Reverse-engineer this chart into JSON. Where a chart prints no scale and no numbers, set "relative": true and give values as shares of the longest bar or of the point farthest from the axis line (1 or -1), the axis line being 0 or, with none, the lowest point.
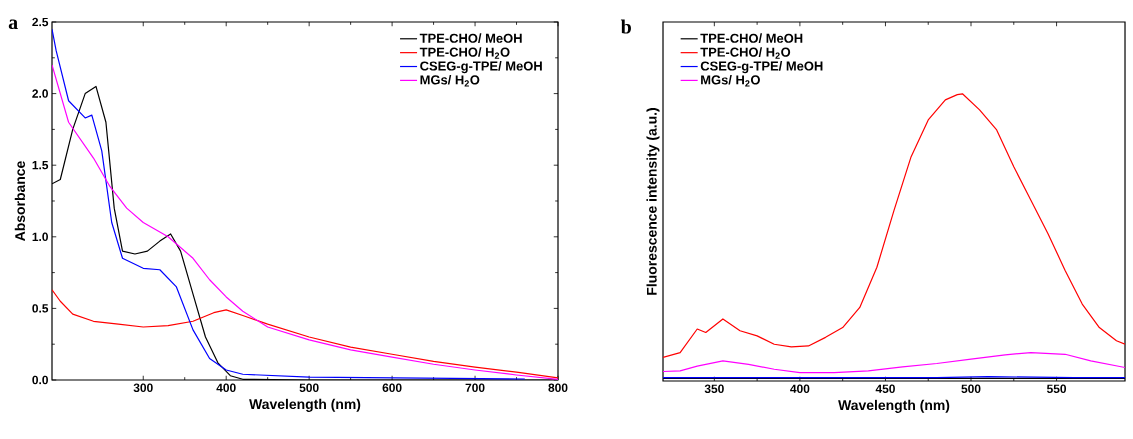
{
  "chart_data": [
    {
      "type": "line",
      "title": "a",
      "xlabel": "Wavelength (nm)",
      "ylabel": "Absorbance",
      "xlim": [
        190,
        800
      ],
      "ylim": [
        0,
        2.5
      ],
      "xticks": [
        300,
        400,
        500,
        600,
        700,
        800
      ],
      "yticks": [
        {
          "value": 0,
          "label": "0.0"
        },
        {
          "value": 0.5,
          "label": "0.5"
        },
        {
          "value": 1,
          "label": "1.0"
        },
        {
          "value": 1.5,
          "label": "1.5"
        },
        {
          "value": 2,
          "label": "2.0"
        },
        {
          "value": 2.5,
          "label": "2.5"
        }
      ],
      "legend": "top right",
      "grid": false,
      "marker": "none",
      "line_style": "solid",
      "series": [
        {
          "name": "TPE-CHO/ MeOH",
          "color": "#000000",
          "x": [
            190,
            200,
            215,
            230,
            243,
            255,
            265,
            275,
            290,
            305,
            320,
            333,
            345,
            360,
            375,
            390,
            405,
            420,
            500,
            800
          ],
          "values": [
            1.37,
            1.4,
            1.75,
            2.0,
            2.05,
            1.8,
            1.2,
            0.9,
            0.88,
            0.9,
            0.97,
            1.02,
            0.9,
            0.6,
            0.3,
            0.12,
            0.03,
            0.005,
            0,
            0
          ]
        },
        {
          "name": "TPE-CHO/ H$_{2}$O",
          "color": "#ff0000",
          "x": [
            190,
            200,
            215,
            240,
            270,
            300,
            330,
            360,
            385,
            400,
            420,
            450,
            500,
            550,
            600,
            650,
            700,
            750,
            800
          ],
          "values": [
            0.63,
            0.55,
            0.46,
            0.41,
            0.39,
            0.37,
            0.38,
            0.41,
            0.47,
            0.49,
            0.45,
            0.39,
            0.3,
            0.23,
            0.18,
            0.13,
            0.09,
            0.055,
            0.015
          ]
        },
        {
          "name": "CSEG-g-TPE/ MeOH",
          "color": "#0000ff",
          "x": [
            190,
            195,
            210,
            230,
            238,
            250,
            262,
            275,
            300,
            320,
            340,
            360,
            380,
            400,
            420,
            500,
            760
          ],
          "values": [
            2.45,
            2.3,
            1.95,
            1.83,
            1.85,
            1.6,
            1.1,
            0.85,
            0.78,
            0.77,
            0.65,
            0.35,
            0.15,
            0.07,
            0.04,
            0.02,
            0.007
          ]
        },
        {
          "name": "MGs/ H$_{2}$O",
          "color": "#ff00ff",
          "x": [
            190,
            210,
            240,
            260,
            280,
            300,
            330,
            360,
            380,
            400,
            420,
            450,
            500,
            550,
            600,
            650,
            700,
            750,
            800
          ],
          "values": [
            2.2,
            1.8,
            1.55,
            1.35,
            1.2,
            1.1,
            1.0,
            0.85,
            0.7,
            0.58,
            0.48,
            0.37,
            0.28,
            0.21,
            0.16,
            0.11,
            0.07,
            0.035,
            0.005
          ]
        }
      ]
    },
    {
      "type": "line",
      "title": "b",
      "xlabel": "Wavelength (nm)",
      "ylabel": "Fluorescence intensity (a.u.)",
      "xlim": [
        320,
        590
      ],
      "relative": true,
      "xticks": [
        350,
        400,
        450,
        500,
        550
      ],
      "tick_labels": "x",
      "legend": "top left",
      "grid": false,
      "marker": "none",
      "line_style": "solid",
      "series": [
        {
          "name": "TPE-CHO/ MeOH",
          "color": "#000000",
          "x": [
            320,
            400,
            480,
            560,
            590
          ],
          "values": [
            0.009,
            0.009,
            0.009,
            0.009,
            0.009
          ]
        },
        {
          "name": "TPE-CHO/ H$_{2}$O",
          "color": "#ff0000",
          "x": [
            320,
            330,
            340,
            345,
            355,
            365,
            375,
            385,
            395,
            405,
            415,
            425,
            435,
            445,
            455,
            465,
            475,
            485,
            492,
            495,
            505,
            515,
            525,
            535,
            545,
            555,
            565,
            575,
            585,
            590
          ],
          "values": [
            0.082,
            0.099,
            0.181,
            0.169,
            0.216,
            0.175,
            0.157,
            0.128,
            0.119,
            0.122,
            0.152,
            0.186,
            0.256,
            0.396,
            0.594,
            0.781,
            0.909,
            0.979,
            0.997,
            1,
            0.944,
            0.874,
            0.746,
            0.629,
            0.513,
            0.385,
            0.268,
            0.186,
            0.14,
            0.128
          ]
        },
        {
          "name": "CSEG-g-TPE/ MeOH",
          "color": "#0000ff",
          "x": [
            320,
            400,
            480,
            510,
            560,
            590
          ],
          "values": [
            0.012,
            0.012,
            0.012,
            0.015,
            0.012,
            0.012
          ]
        },
        {
          "name": "MGs/ H$_{2}$O",
          "color": "#ff00ff",
          "x": [
            320,
            330,
            340,
            355,
            370,
            385,
            400,
            420,
            440,
            460,
            480,
            500,
            520,
            535,
            555,
            570,
            590
          ],
          "values": [
            0.033,
            0.035,
            0.052,
            0.07,
            0.058,
            0.041,
            0.029,
            0.029,
            0.035,
            0.049,
            0.061,
            0.076,
            0.091,
            0.099,
            0.093,
            0.07,
            0.047
          ]
        }
      ]
    }
  ]
}
